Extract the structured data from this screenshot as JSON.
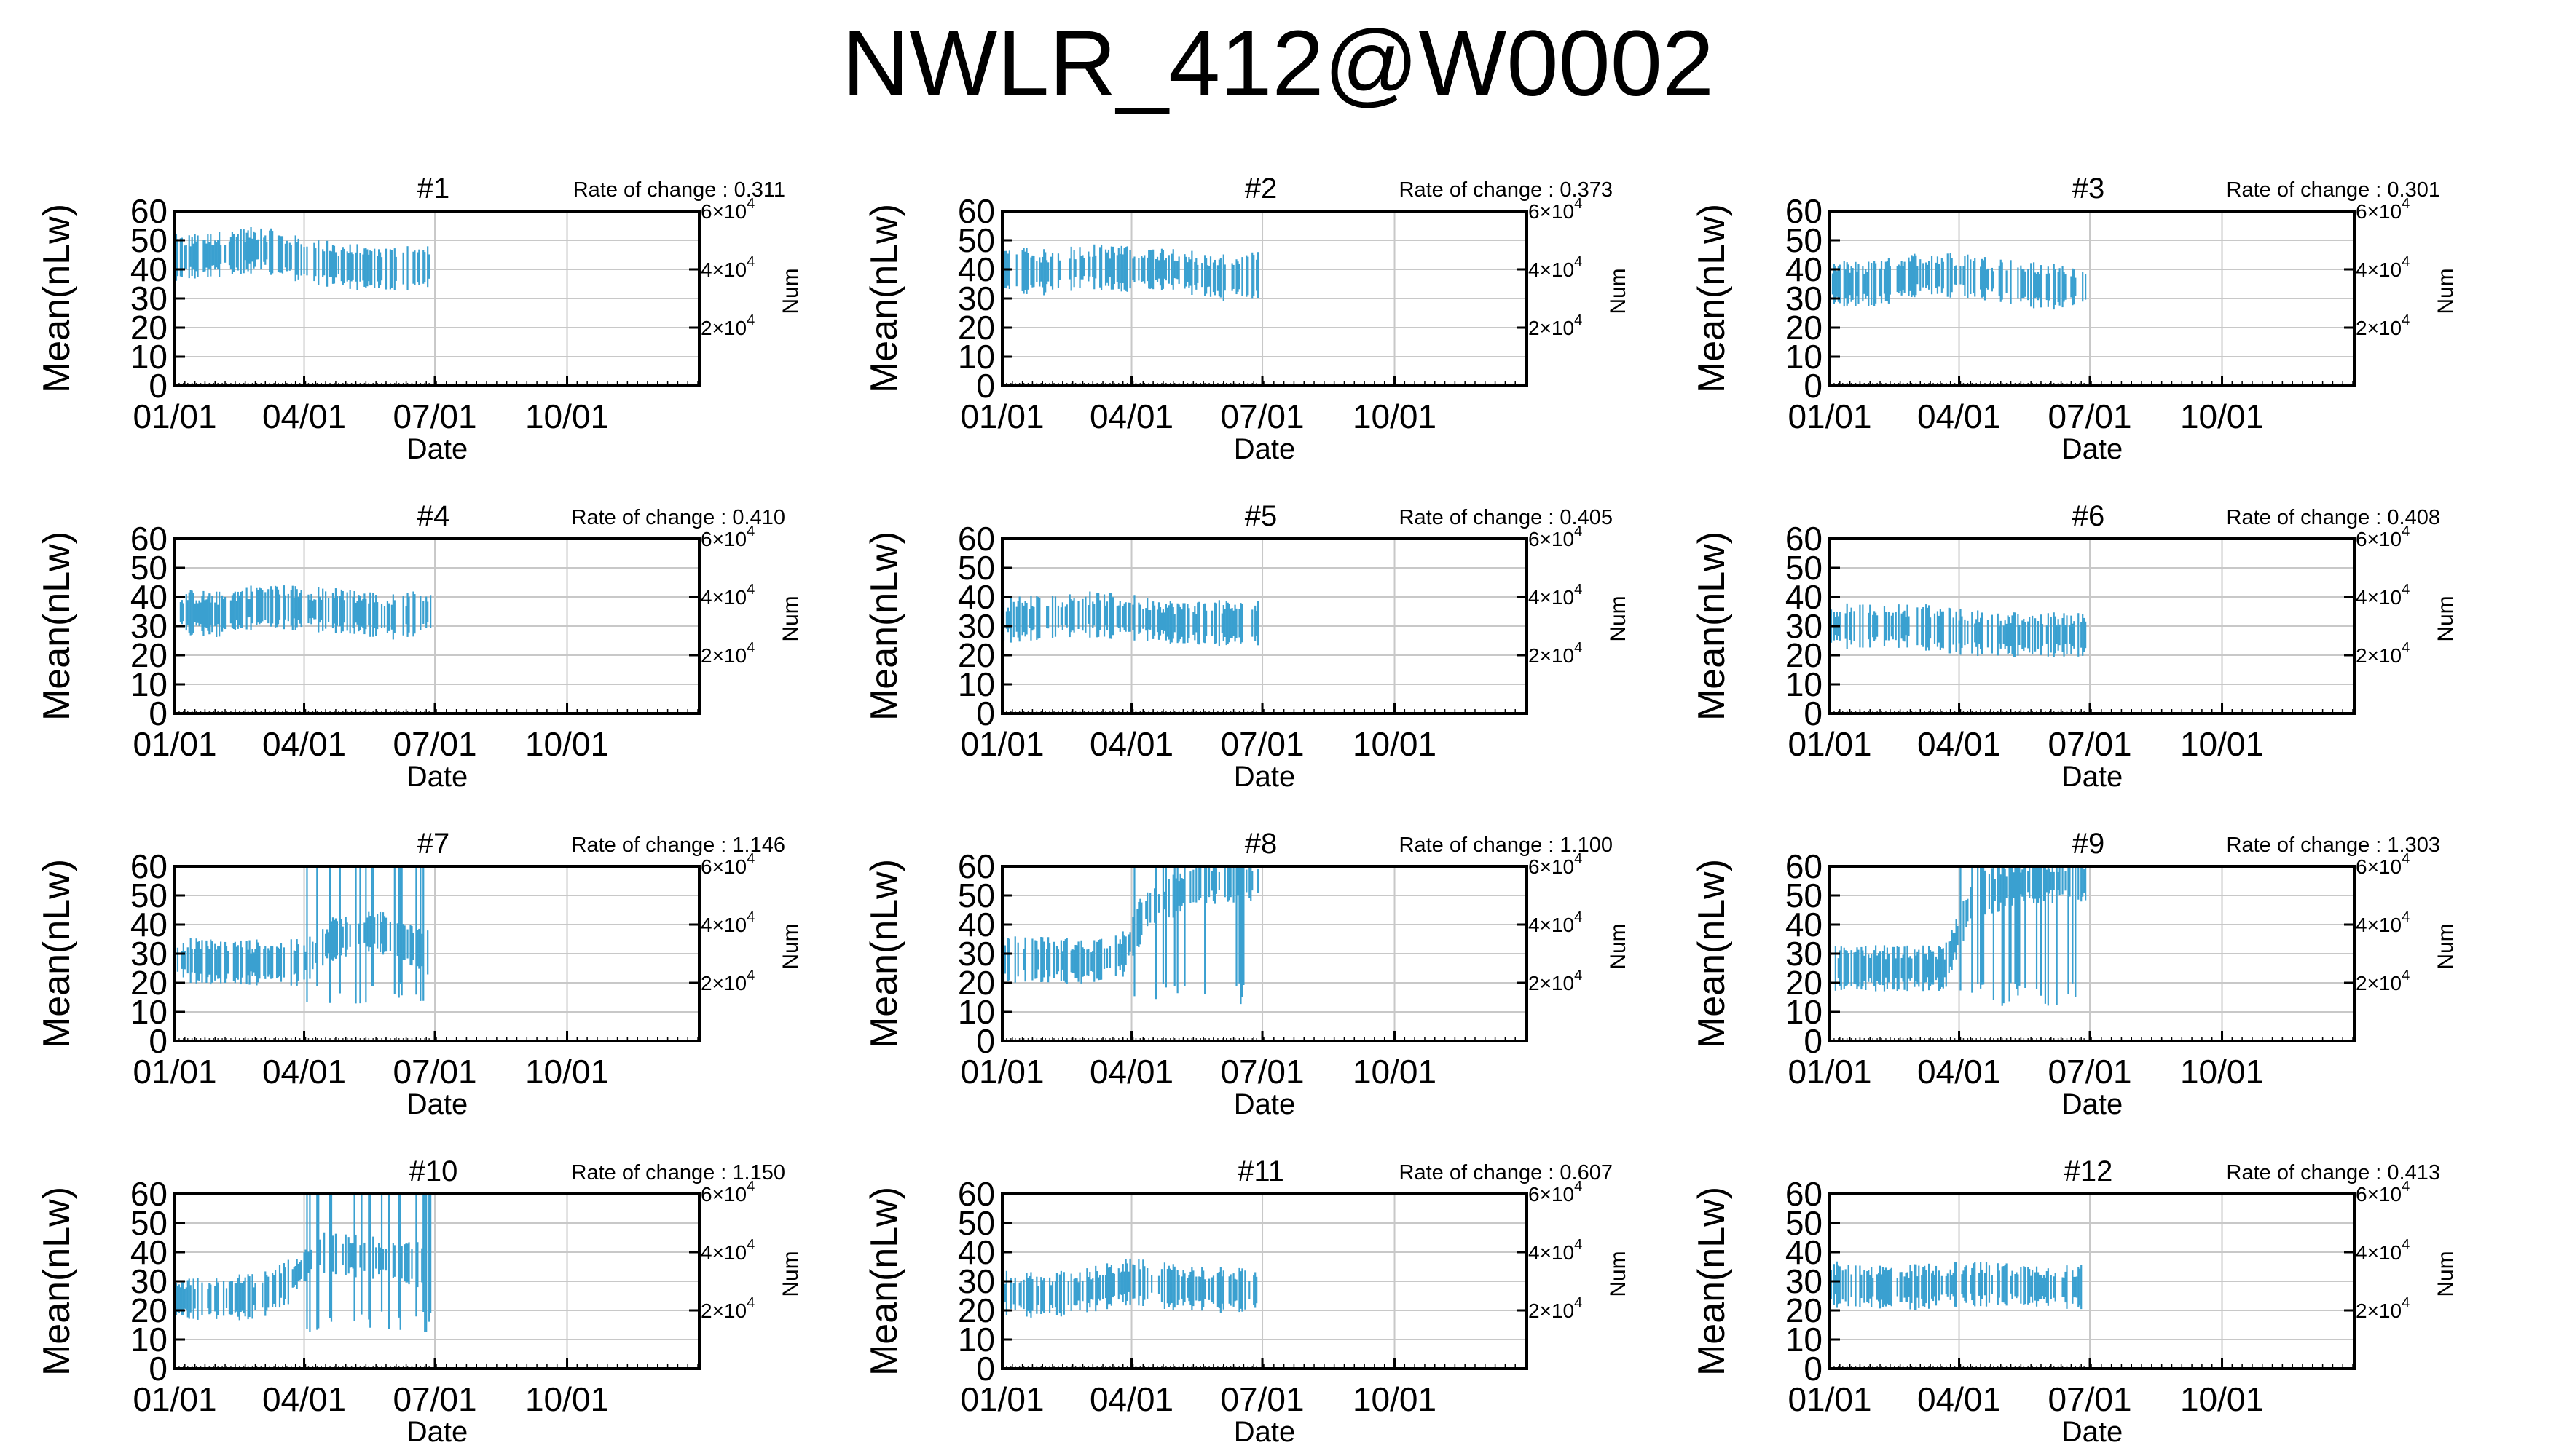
{
  "title": "NWLR_412@W0002",
  "colors": {
    "series": "#3aa0d0",
    "grid": "#c8c8c8",
    "axis": "#000000"
  },
  "common": {
    "ylabel": "Mean(nLw)",
    "xlabel": "Date",
    "y2label": "Num",
    "rate_prefix": "Rate of change : ",
    "yticks": [
      "0",
      "10",
      "20",
      "30",
      "40",
      "50",
      "60"
    ],
    "xticks": [
      "01/01",
      "04/01",
      "07/01",
      "10/01"
    ],
    "y2ticks": [
      {
        "base": "2×10",
        "exp": "4"
      },
      {
        "base": "4×10",
        "exp": "4"
      },
      {
        "base": "6×10",
        "exp": "4"
      }
    ]
  },
  "chart_data": [
    {
      "type": "scatter",
      "title": "#1",
      "rate": "0.311",
      "x_range": [
        "01/01",
        "12/31"
      ],
      "ylim": [
        0,
        60
      ],
      "y2lim": [
        0,
        60000
      ],
      "series": [
        {
          "values": [
            [
              0,
              44
            ],
            [
              30,
              45
            ],
            [
              60,
              47
            ],
            [
              90,
              43
            ],
            [
              120,
              41
            ],
            [
              150,
              40
            ],
            [
              178,
              41
            ]
          ]
        }
      ]
    },
    {
      "type": "scatter",
      "title": "#2",
      "rate": "0.373",
      "x_range": [
        "01/01",
        "12/31"
      ],
      "ylim": [
        0,
        60
      ],
      "y2lim": [
        0,
        60000
      ],
      "series": [
        {
          "values": [
            [
              0,
              40
            ],
            [
              30,
              39
            ],
            [
              60,
              41
            ],
            [
              90,
              40
            ],
            [
              120,
              40
            ],
            [
              150,
              37
            ],
            [
              178,
              38
            ]
          ]
        }
      ]
    },
    {
      "type": "scatter",
      "title": "#3",
      "rate": "0.301",
      "x_range": [
        "01/01",
        "12/31"
      ],
      "ylim": [
        0,
        60
      ],
      "y2lim": [
        0,
        60000
      ],
      "series": [
        {
          "values": [
            [
              0,
              35
            ],
            [
              30,
              35
            ],
            [
              60,
              38
            ],
            [
              90,
              38
            ],
            [
              120,
              36
            ],
            [
              150,
              34
            ],
            [
              178,
              34
            ]
          ]
        }
      ]
    },
    {
      "type": "scatter",
      "title": "#4",
      "rate": "0.410",
      "x_range": [
        "01/01",
        "12/31"
      ],
      "ylim": [
        0,
        60
      ],
      "y2lim": [
        0,
        60000
      ],
      "series": [
        {
          "values": [
            [
              0,
              35
            ],
            [
              30,
              34
            ],
            [
              60,
              37
            ],
            [
              90,
              36
            ],
            [
              120,
              35
            ],
            [
              150,
              33
            ],
            [
              178,
              35
            ]
          ]
        }
      ]
    },
    {
      "type": "scatter",
      "title": "#5",
      "rate": "0.405",
      "x_range": [
        "01/01",
        "12/31"
      ],
      "ylim": [
        0,
        60
      ],
      "y2lim": [
        0,
        60000
      ],
      "series": [
        {
          "values": [
            [
              0,
              32
            ],
            [
              30,
              33
            ],
            [
              60,
              34
            ],
            [
              90,
              33
            ],
            [
              120,
              31
            ],
            [
              150,
              31
            ],
            [
              178,
              31
            ]
          ]
        }
      ]
    },
    {
      "type": "scatter",
      "title": "#6",
      "rate": "0.408",
      "x_range": [
        "01/01",
        "12/31"
      ],
      "ylim": [
        0,
        60
      ],
      "y2lim": [
        0,
        60000
      ],
      "series": [
        {
          "values": [
            [
              0,
              30
            ],
            [
              30,
              30
            ],
            [
              60,
              30
            ],
            [
              90,
              28
            ],
            [
              120,
              27
            ],
            [
              150,
              27
            ],
            [
              178,
              27
            ]
          ]
        }
      ]
    },
    {
      "type": "scatter",
      "title": "#7",
      "rate": "1.146",
      "x_range": [
        "01/01",
        "12/31"
      ],
      "ylim": [
        0,
        60
      ],
      "y2lim": [
        0,
        60000
      ],
      "series": [
        {
          "values": [
            [
              0,
              28
            ],
            [
              30,
              27
            ],
            [
              60,
              27
            ],
            [
              90,
              27
            ],
            [
              110,
              35
            ],
            [
              140,
              38
            ],
            [
              178,
              30
            ]
          ]
        }
      ]
    },
    {
      "type": "scatter",
      "title": "#8",
      "rate": "1.100",
      "x_range": [
        "01/01",
        "12/31"
      ],
      "ylim": [
        0,
        60
      ],
      "y2lim": [
        0,
        60000
      ],
      "series": [
        {
          "values": [
            [
              0,
              28
            ],
            [
              30,
              28
            ],
            [
              60,
              27
            ],
            [
              85,
              30
            ],
            [
              100,
              45
            ],
            [
              140,
              55
            ],
            [
              178,
              55
            ]
          ]
        }
      ]
    },
    {
      "type": "scatter",
      "title": "#9",
      "rate": "1.303",
      "x_range": [
        "01/01",
        "12/31"
      ],
      "ylim": [
        0,
        60
      ],
      "y2lim": [
        0,
        60000
      ],
      "series": [
        {
          "values": [
            [
              0,
              25
            ],
            [
              30,
              25
            ],
            [
              60,
              25
            ],
            [
              80,
              25
            ],
            [
              100,
              50
            ],
            [
              140,
              55
            ],
            [
              178,
              55
            ]
          ]
        }
      ]
    },
    {
      "type": "scatter",
      "title": "#10",
      "rate": "1.150",
      "x_range": [
        "01/01",
        "12/31"
      ],
      "ylim": [
        0,
        60
      ],
      "y2lim": [
        0,
        60000
      ],
      "series": [
        {
          "values": [
            [
              0,
              24
            ],
            [
              30,
              24
            ],
            [
              60,
              25
            ],
            [
              80,
              30
            ],
            [
              100,
              40
            ],
            [
              140,
              38
            ],
            [
              178,
              35
            ]
          ]
        }
      ]
    },
    {
      "type": "scatter",
      "title": "#11",
      "rate": "0.607",
      "x_range": [
        "01/01",
        "12/31"
      ],
      "ylim": [
        0,
        60
      ],
      "y2lim": [
        0,
        60000
      ],
      "series": [
        {
          "values": [
            [
              0,
              26
            ],
            [
              30,
              25
            ],
            [
              60,
              27
            ],
            [
              90,
              30
            ],
            [
              120,
              28
            ],
            [
              150,
              27
            ],
            [
              178,
              27
            ]
          ]
        }
      ]
    },
    {
      "type": "scatter",
      "title": "#12",
      "rate": "0.413",
      "x_range": [
        "01/01",
        "12/31"
      ],
      "ylim": [
        0,
        60
      ],
      "y2lim": [
        0,
        60000
      ],
      "series": [
        {
          "values": [
            [
              0,
              29
            ],
            [
              30,
              28
            ],
            [
              60,
              28
            ],
            [
              90,
              29
            ],
            [
              120,
              29
            ],
            [
              150,
              28
            ],
            [
              178,
              28
            ]
          ]
        }
      ]
    }
  ]
}
